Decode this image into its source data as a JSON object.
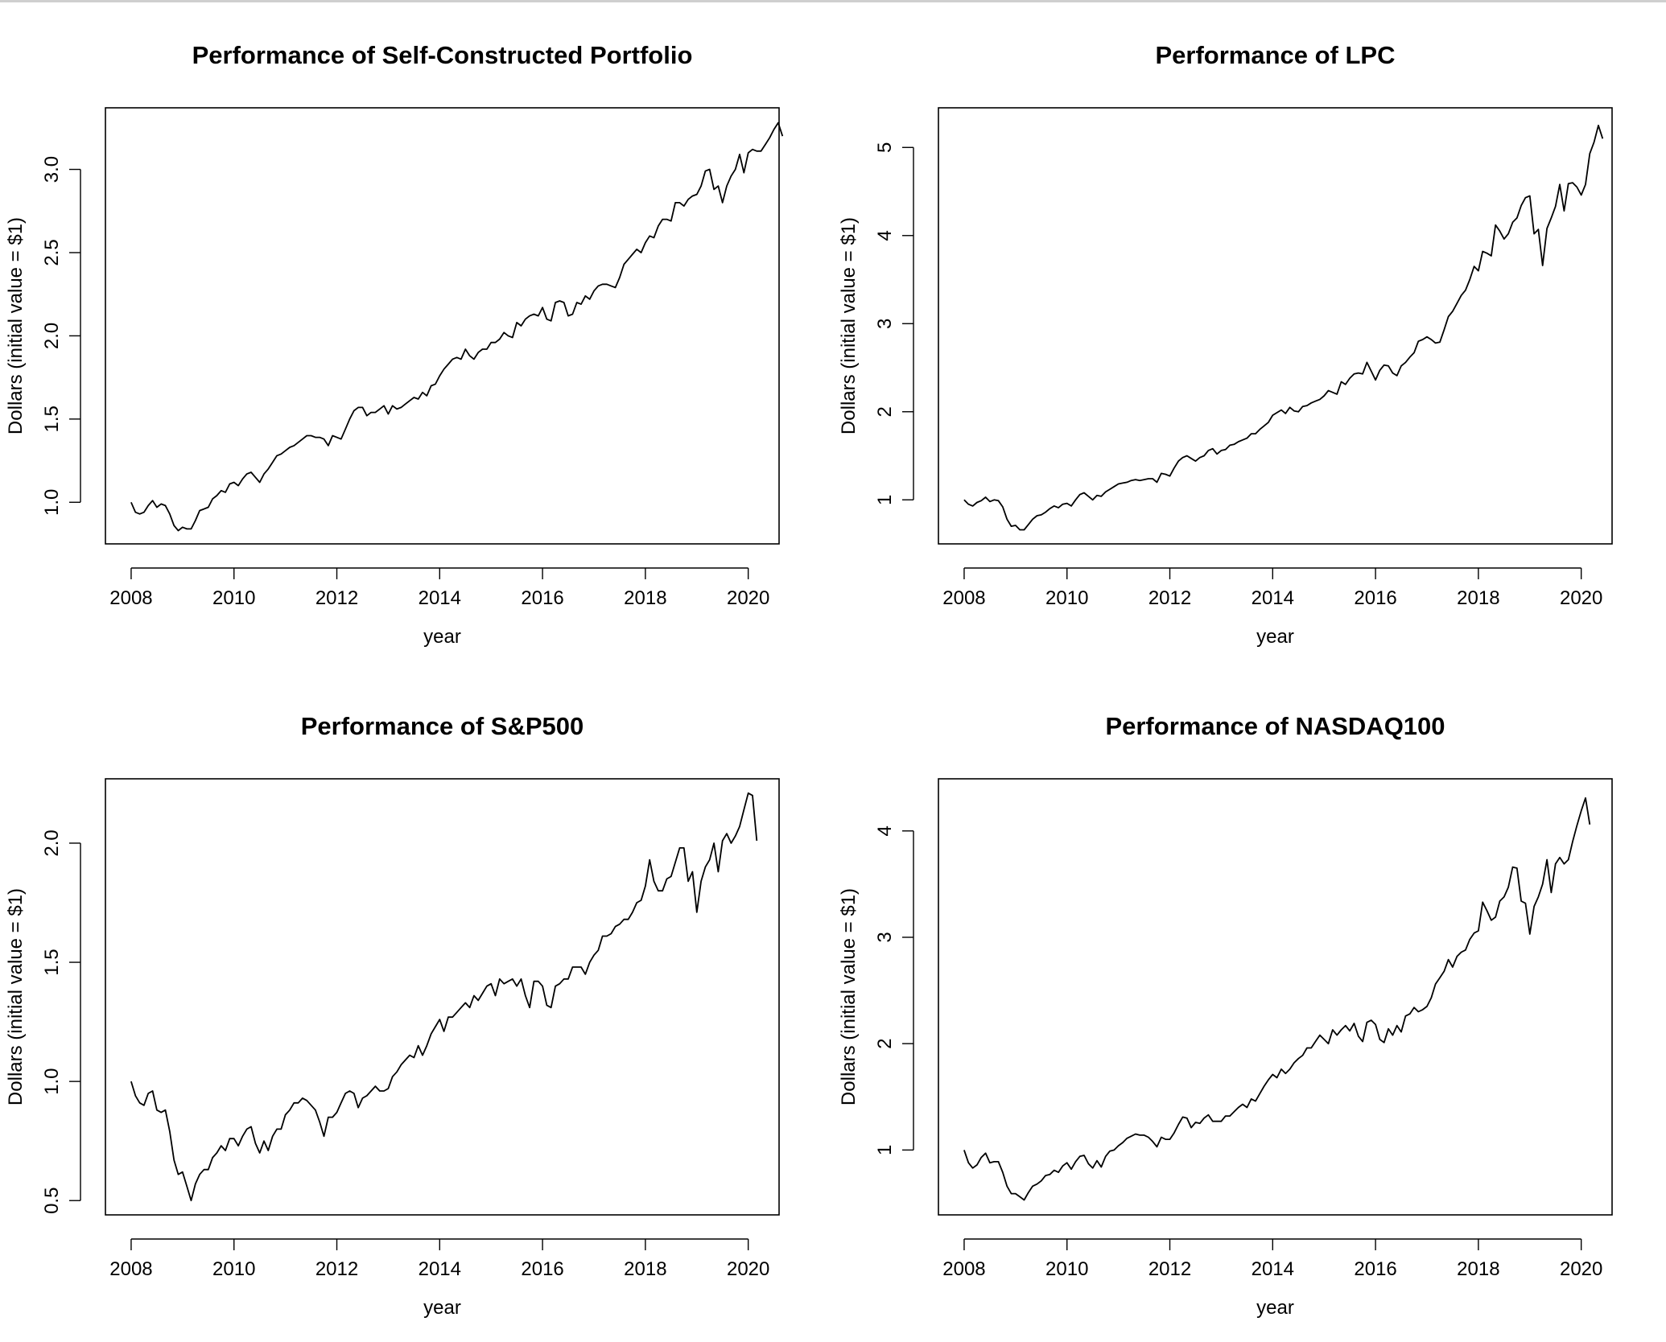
{
  "chart_data": [
    {
      "type": "line",
      "title": "Performance of Self-Constructed Portfolio",
      "xlabel": "year",
      "ylabel": "Dollars (initial value = $1)",
      "xlim": [
        2007.5,
        2020.6
      ],
      "ylim": [
        0.75,
        3.37
      ],
      "xticks": [
        2008,
        2010,
        2012,
        2014,
        2016,
        2018,
        2020
      ],
      "yticks": [
        1.0,
        1.5,
        2.0,
        2.5,
        3.0
      ],
      "ytick_labels": [
        "1.0",
        "1.5",
        "2.0",
        "2.5",
        "3.0"
      ],
      "grid": false,
      "series": [
        {
          "x0": 2008,
          "step": 0.0833333333,
          "values": [
            1.0,
            0.94,
            0.93,
            0.94,
            0.98,
            1.01,
            0.97,
            0.99,
            0.98,
            0.93,
            0.86,
            0.83,
            0.85,
            0.84,
            0.84,
            0.89,
            0.95,
            0.96,
            0.97,
            1.02,
            1.04,
            1.07,
            1.06,
            1.11,
            1.12,
            1.1,
            1.14,
            1.17,
            1.18,
            1.15,
            1.12,
            1.17,
            1.2,
            1.24,
            1.28,
            1.29,
            1.31,
            1.33,
            1.34,
            1.36,
            1.38,
            1.4,
            1.4,
            1.39,
            1.39,
            1.38,
            1.34,
            1.4,
            1.39,
            1.38,
            1.44,
            1.5,
            1.55,
            1.57,
            1.57,
            1.52,
            1.54,
            1.54,
            1.56,
            1.58,
            1.53,
            1.58,
            1.56,
            1.57,
            1.59,
            1.61,
            1.63,
            1.62,
            1.66,
            1.64,
            1.7,
            1.71,
            1.76,
            1.8,
            1.83,
            1.86,
            1.87,
            1.86,
            1.92,
            1.88,
            1.86,
            1.9,
            1.92,
            1.92,
            1.96,
            1.96,
            1.98,
            2.02,
            2.0,
            1.99,
            2.08,
            2.06,
            2.1,
            2.12,
            2.13,
            2.12,
            2.17,
            2.1,
            2.09,
            2.2,
            2.21,
            2.2,
            2.12,
            2.13,
            2.2,
            2.19,
            2.24,
            2.22,
            2.27,
            2.3,
            2.31,
            2.31,
            2.3,
            2.29,
            2.35,
            2.43,
            2.46,
            2.49,
            2.52,
            2.5,
            2.56,
            2.6,
            2.59,
            2.66,
            2.7,
            2.7,
            2.69,
            2.8,
            2.8,
            2.78,
            2.82,
            2.84,
            2.85,
            2.9,
            2.99,
            3.0,
            2.88,
            2.9,
            2.8,
            2.9,
            2.96,
            3.0,
            3.09,
            2.98,
            3.1,
            3.12,
            3.11,
            3.11,
            3.15,
            3.19,
            3.24,
            3.28,
            3.2
          ]
        }
      ]
    },
    {
      "type": "line",
      "title": "Performance of LPC",
      "xlabel": "year",
      "ylabel": "Dollars (initial value = $1)",
      "xlim": [
        2007.5,
        2020.6
      ],
      "ylim": [
        0.5,
        5.45
      ],
      "xticks": [
        2008,
        2010,
        2012,
        2014,
        2016,
        2018,
        2020
      ],
      "yticks": [
        1,
        2,
        3,
        4,
        5
      ],
      "ytick_labels": [
        "1",
        "2",
        "3",
        "4",
        "5"
      ],
      "grid": false,
      "series": [
        {
          "x0": 2008,
          "step": 0.0833333333,
          "values": [
            1.0,
            0.95,
            0.93,
            0.97,
            0.99,
            1.03,
            0.98,
            1.0,
            0.99,
            0.92,
            0.78,
            0.7,
            0.71,
            0.66,
            0.66,
            0.72,
            0.78,
            0.82,
            0.83,
            0.86,
            0.9,
            0.93,
            0.91,
            0.95,
            0.96,
            0.93,
            1.0,
            1.06,
            1.08,
            1.04,
            1.0,
            1.05,
            1.04,
            1.09,
            1.12,
            1.15,
            1.18,
            1.19,
            1.2,
            1.22,
            1.23,
            1.22,
            1.23,
            1.24,
            1.24,
            1.2,
            1.3,
            1.29,
            1.27,
            1.36,
            1.44,
            1.48,
            1.5,
            1.47,
            1.44,
            1.48,
            1.5,
            1.56,
            1.58,
            1.52,
            1.56,
            1.57,
            1.62,
            1.63,
            1.66,
            1.68,
            1.7,
            1.75,
            1.75,
            1.8,
            1.84,
            1.88,
            1.96,
            1.99,
            2.02,
            1.98,
            2.05,
            2.01,
            2.0,
            2.06,
            2.07,
            2.1,
            2.12,
            2.14,
            2.18,
            2.24,
            2.22,
            2.2,
            2.34,
            2.31,
            2.38,
            2.43,
            2.44,
            2.43,
            2.56,
            2.46,
            2.36,
            2.47,
            2.53,
            2.52,
            2.44,
            2.41,
            2.52,
            2.56,
            2.62,
            2.67,
            2.8,
            2.82,
            2.85,
            2.82,
            2.78,
            2.79,
            2.93,
            3.08,
            3.14,
            3.23,
            3.32,
            3.38,
            3.5,
            3.65,
            3.6,
            3.82,
            3.8,
            3.77,
            4.12,
            4.05,
            3.96,
            4.02,
            4.15,
            4.2,
            4.34,
            4.43,
            4.45,
            4.02,
            4.07,
            3.66,
            4.08,
            4.2,
            4.33,
            4.58,
            4.28,
            4.59,
            4.6,
            4.55,
            4.46,
            4.58,
            4.93,
            5.06,
            5.25,
            5.1
          ]
        }
      ]
    },
    {
      "type": "line",
      "title": "Performance of S&P500",
      "xlabel": "year",
      "ylabel": "Dollars (initial value = $1)",
      "xlim": [
        2007.5,
        2020.6
      ],
      "ylim": [
        0.44,
        2.27
      ],
      "xticks": [
        2008,
        2010,
        2012,
        2014,
        2016,
        2018,
        2020
      ],
      "yticks": [
        0.5,
        1.0,
        1.5,
        2.0
      ],
      "ytick_labels": [
        "0.5",
        "1.0",
        "1.5",
        "2.0"
      ],
      "grid": false,
      "series": [
        {
          "x0": 2008,
          "step": 0.0833333333,
          "values": [
            1.0,
            0.94,
            0.91,
            0.9,
            0.95,
            0.96,
            0.88,
            0.87,
            0.88,
            0.79,
            0.67,
            0.61,
            0.62,
            0.56,
            0.5,
            0.57,
            0.61,
            0.63,
            0.63,
            0.68,
            0.7,
            0.73,
            0.71,
            0.76,
            0.76,
            0.73,
            0.77,
            0.8,
            0.81,
            0.74,
            0.7,
            0.75,
            0.71,
            0.77,
            0.8,
            0.8,
            0.86,
            0.88,
            0.91,
            0.91,
            0.93,
            0.92,
            0.9,
            0.88,
            0.83,
            0.77,
            0.85,
            0.85,
            0.87,
            0.91,
            0.95,
            0.96,
            0.95,
            0.89,
            0.93,
            0.94,
            0.96,
            0.98,
            0.96,
            0.96,
            0.97,
            1.02,
            1.04,
            1.07,
            1.09,
            1.11,
            1.1,
            1.15,
            1.11,
            1.15,
            1.2,
            1.23,
            1.26,
            1.21,
            1.27,
            1.27,
            1.29,
            1.31,
            1.33,
            1.31,
            1.36,
            1.34,
            1.37,
            1.4,
            1.41,
            1.36,
            1.43,
            1.41,
            1.42,
            1.43,
            1.4,
            1.43,
            1.36,
            1.31,
            1.42,
            1.42,
            1.4,
            1.32,
            1.31,
            1.4,
            1.41,
            1.43,
            1.43,
            1.48,
            1.48,
            1.48,
            1.45,
            1.5,
            1.53,
            1.55,
            1.61,
            1.61,
            1.62,
            1.65,
            1.66,
            1.68,
            1.68,
            1.71,
            1.75,
            1.76,
            1.82,
            1.93,
            1.84,
            1.8,
            1.8,
            1.85,
            1.86,
            1.92,
            1.98,
            1.98,
            1.84,
            1.88,
            1.71,
            1.84,
            1.9,
            1.93,
            2.0,
            1.88,
            2.01,
            2.04,
            2.0,
            2.03,
            2.07,
            2.14,
            2.21,
            2.2,
            2.01
          ]
        }
      ]
    },
    {
      "type": "line",
      "title": "Performance of NASDAQ100",
      "xlabel": "year",
      "ylabel": "Dollars (initial value = $1)",
      "xlim": [
        2007.5,
        2020.6
      ],
      "ylim": [
        0.39,
        4.49
      ],
      "xticks": [
        2008,
        2010,
        2012,
        2014,
        2016,
        2018,
        2020
      ],
      "yticks": [
        1,
        2,
        3,
        4
      ],
      "ytick_labels": [
        "1",
        "2",
        "3",
        "4"
      ],
      "grid": false,
      "series": [
        {
          "x0": 2008,
          "step": 0.0833333333,
          "values": [
            1.0,
            0.88,
            0.83,
            0.86,
            0.93,
            0.97,
            0.88,
            0.89,
            0.89,
            0.79,
            0.66,
            0.59,
            0.59,
            0.56,
            0.53,
            0.6,
            0.66,
            0.68,
            0.71,
            0.76,
            0.77,
            0.81,
            0.79,
            0.85,
            0.88,
            0.82,
            0.89,
            0.94,
            0.95,
            0.87,
            0.83,
            0.9,
            0.84,
            0.94,
            0.99,
            1.0,
            1.04,
            1.07,
            1.11,
            1.13,
            1.15,
            1.14,
            1.14,
            1.12,
            1.08,
            1.03,
            1.12,
            1.1,
            1.1,
            1.16,
            1.24,
            1.31,
            1.3,
            1.21,
            1.26,
            1.25,
            1.3,
            1.33,
            1.27,
            1.27,
            1.27,
            1.32,
            1.32,
            1.36,
            1.4,
            1.43,
            1.4,
            1.48,
            1.46,
            1.53,
            1.6,
            1.66,
            1.71,
            1.68,
            1.76,
            1.72,
            1.76,
            1.82,
            1.86,
            1.89,
            1.96,
            1.96,
            2.02,
            2.08,
            2.04,
            2.0,
            2.13,
            2.08,
            2.13,
            2.17,
            2.12,
            2.19,
            2.07,
            2.02,
            2.2,
            2.22,
            2.18,
            2.04,
            2.01,
            2.14,
            2.08,
            2.17,
            2.11,
            2.26,
            2.28,
            2.34,
            2.3,
            2.32,
            2.35,
            2.43,
            2.56,
            2.62,
            2.68,
            2.79,
            2.72,
            2.82,
            2.86,
            2.88,
            2.98,
            3.04,
            3.06,
            3.33,
            3.25,
            3.16,
            3.19,
            3.34,
            3.38,
            3.47,
            3.66,
            3.65,
            3.34,
            3.32,
            3.03,
            3.29,
            3.38,
            3.5,
            3.73,
            3.42,
            3.69,
            3.75,
            3.69,
            3.73,
            3.9,
            4.05,
            4.19,
            4.31,
            4.06
          ]
        }
      ]
    }
  ]
}
